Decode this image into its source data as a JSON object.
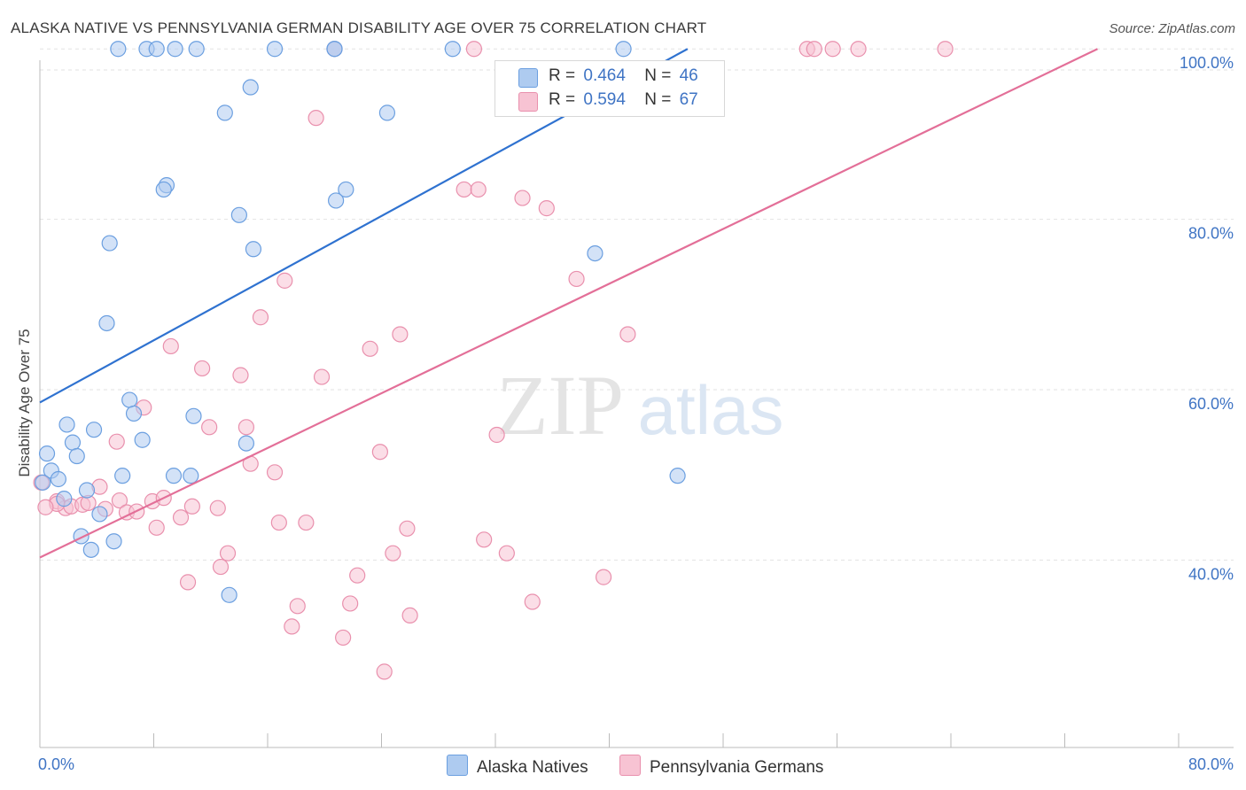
{
  "title": "ALASKA NATIVE VS PENNSYLVANIA GERMAN DISABILITY AGE OVER 75 CORRELATION CHART",
  "source": "Source: ZipAtlas.com",
  "watermark": {
    "zip": "ZIP",
    "atlas": "atlas"
  },
  "legend": {
    "blue": {
      "r_label": "R =",
      "r_value": "0.464",
      "n_label": "N =",
      "n_value": "46"
    },
    "pink": {
      "r_label": "R =",
      "r_value": "0.594",
      "n_label": "N =",
      "n_value": "67"
    }
  },
  "colors": {
    "blue_fill": "#aecbf0",
    "blue_stroke": "#6b9fe0",
    "blue_line": "#2f72d0",
    "pink_fill": "#f7c3d3",
    "pink_stroke": "#e990ad",
    "pink_line": "#e36f98",
    "axis_label": "#3f74c4",
    "grid": "#e2e2e2"
  },
  "chart_data": {
    "type": "scatter",
    "title": "ALASKA NATIVE VS PENNSYLVANIA GERMAN DISABILITY AGE OVER 75 CORRELATION CHART",
    "xlabel": "",
    "ylabel": "Disability Age Over 75",
    "xlim": [
      0,
      80
    ],
    "ylim": [
      18,
      102
    ],
    "x_tick_labels": [
      "0.0%",
      "80.0%"
    ],
    "y_ticks": [
      40,
      60,
      80,
      100
    ],
    "y_tick_labels": [
      "40.0%",
      "60.0%",
      "80.0%",
      "100.0%"
    ],
    "series": [
      {
        "name": "Alaska Natives",
        "color": "blue",
        "trend": {
          "x": [
            0,
            45.5
          ],
          "y": [
            58.5,
            100
          ]
        },
        "points": [
          [
            5.5,
            100
          ],
          [
            7.5,
            100
          ],
          [
            8.2,
            100
          ],
          [
            9.5,
            100
          ],
          [
            11,
            100
          ],
          [
            16.5,
            100
          ],
          [
            20.7,
            100
          ],
          [
            29,
            100
          ],
          [
            41,
            100
          ],
          [
            14.8,
            95.5
          ],
          [
            13,
            92.5
          ],
          [
            24.4,
            92.5
          ],
          [
            8.9,
            84
          ],
          [
            8.7,
            83.5
          ],
          [
            21.5,
            83.5
          ],
          [
            20.8,
            82.2
          ],
          [
            14,
            80.5
          ],
          [
            4.9,
            77.2
          ],
          [
            15,
            76.5
          ],
          [
            39,
            76
          ],
          [
            4.7,
            67.8
          ],
          [
            6.3,
            58.8
          ],
          [
            6.6,
            57.2
          ],
          [
            10.8,
            56.9
          ],
          [
            1.9,
            55.9
          ],
          [
            3.8,
            55.3
          ],
          [
            7.2,
            54.1
          ],
          [
            2.3,
            53.8
          ],
          [
            14.5,
            53.7
          ],
          [
            0.5,
            52.5
          ],
          [
            2.6,
            52.2
          ],
          [
            0.8,
            50.5
          ],
          [
            5.8,
            49.9
          ],
          [
            9.4,
            49.9
          ],
          [
            10.6,
            49.9
          ],
          [
            44.8,
            49.9
          ],
          [
            1.3,
            49.5
          ],
          [
            0.2,
            49.1
          ],
          [
            3.3,
            48.2
          ],
          [
            1.7,
            47.2
          ],
          [
            4.2,
            45.4
          ],
          [
            2.9,
            42.8
          ],
          [
            5.2,
            42.2
          ],
          [
            3.6,
            41.2
          ],
          [
            13.3,
            35.9
          ],
          [
            20.7,
            100
          ]
        ]
      },
      {
        "name": "Pennsylvania Germans",
        "color": "pink",
        "trend": {
          "x": [
            0,
            74.3
          ],
          "y": [
            40.3,
            100
          ]
        },
        "points": [
          [
            20.7,
            100
          ],
          [
            30.5,
            100
          ],
          [
            53.9,
            100
          ],
          [
            54.4,
            100
          ],
          [
            55.7,
            100
          ],
          [
            57.5,
            100
          ],
          [
            63.6,
            100
          ],
          [
            19.4,
            91.9
          ],
          [
            29.8,
            83.5
          ],
          [
            30.8,
            83.5
          ],
          [
            33.9,
            82.5
          ],
          [
            35.6,
            81.3
          ],
          [
            17.2,
            72.8
          ],
          [
            15.5,
            68.5
          ],
          [
            37.7,
            73
          ],
          [
            25.3,
            66.5
          ],
          [
            41.3,
            66.5
          ],
          [
            9.2,
            65.1
          ],
          [
            23.2,
            64.8
          ],
          [
            11.4,
            62.5
          ],
          [
            14.1,
            61.7
          ],
          [
            19.8,
            61.5
          ],
          [
            7.3,
            57.9
          ],
          [
            11.9,
            55.6
          ],
          [
            14.5,
            55.6
          ],
          [
            32.1,
            54.7
          ],
          [
            5.4,
            53.9
          ],
          [
            23.9,
            52.7
          ],
          [
            14.8,
            51.3
          ],
          [
            16.5,
            50.3
          ],
          [
            0.1,
            49.1
          ],
          [
            4.2,
            48.6
          ],
          [
            1.2,
            46.9
          ],
          [
            1.8,
            46.1
          ],
          [
            2.2,
            46.3
          ],
          [
            3,
            46.5
          ],
          [
            4.6,
            46
          ],
          [
            5.6,
            47
          ],
          [
            6.1,
            45.6
          ],
          [
            6.8,
            45.7
          ],
          [
            7.9,
            46.9
          ],
          [
            8.7,
            47.3
          ],
          [
            10.7,
            46.3
          ],
          [
            12.5,
            46.1
          ],
          [
            9.9,
            45
          ],
          [
            16.8,
            44.4
          ],
          [
            18.7,
            44.4
          ],
          [
            8.2,
            43.8
          ],
          [
            25.8,
            43.7
          ],
          [
            31.2,
            42.4
          ],
          [
            13.2,
            40.8
          ],
          [
            24.8,
            40.8
          ],
          [
            32.8,
            40.8
          ],
          [
            12.7,
            39.2
          ],
          [
            22.3,
            38.2
          ],
          [
            39.6,
            38
          ],
          [
            10.4,
            37.4
          ],
          [
            18.1,
            34.6
          ],
          [
            21.8,
            34.9
          ],
          [
            34.6,
            35.1
          ],
          [
            26,
            33.5
          ],
          [
            17.7,
            32.2
          ],
          [
            21.3,
            30.9
          ],
          [
            24.2,
            26.9
          ],
          [
            1.2,
            46.6
          ],
          [
            0.4,
            46.2
          ],
          [
            3.4,
            46.7
          ]
        ]
      }
    ]
  }
}
